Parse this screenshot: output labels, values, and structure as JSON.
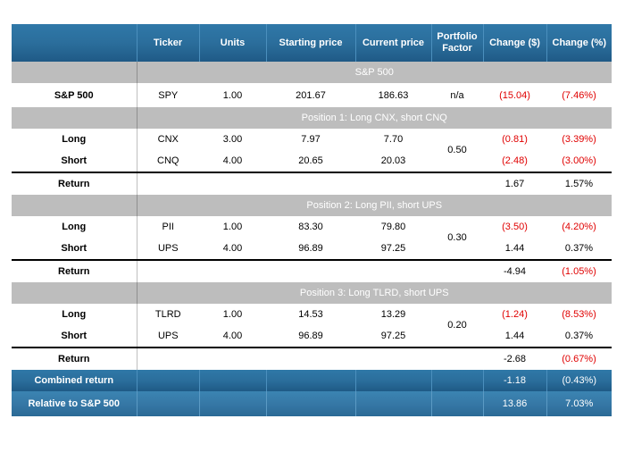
{
  "header": {
    "ticker": "Ticker",
    "units": "Units",
    "starting_price": "Starting price",
    "current_price": "Current price",
    "portfolio_factor_1": "Portfolio",
    "portfolio_factor_2": "Factor",
    "change_dollar": "Change ($)",
    "change_pct": "Change (%)"
  },
  "benchmark": {
    "section_title": "S&P 500",
    "label": "S&P 500",
    "ticker": "SPY",
    "units": "1.00",
    "starting_price": "201.67",
    "current_price": "186.63",
    "factor": "n/a",
    "change_dollar": "(15.04)",
    "change_pct": "(7.46%)"
  },
  "positions": [
    {
      "title": "Position 1: Long CNX, short CNQ",
      "factor": "0.50",
      "long": {
        "label": "Long",
        "ticker": "CNX",
        "units": "3.00",
        "start": "7.97",
        "current": "7.70",
        "chg": "(0.81)",
        "pct": "(3.39%)"
      },
      "short": {
        "label": "Short",
        "ticker": "CNQ",
        "units": "4.00",
        "start": "20.65",
        "current": "20.03",
        "chg": "(2.48)",
        "pct": "(3.00%)"
      },
      "ret": {
        "label": "Return",
        "chg": "1.67",
        "pct": "1.57%"
      }
    },
    {
      "title": "Position 2: Long PII, short UPS",
      "factor": "0.30",
      "long": {
        "label": "Long",
        "ticker": "PII",
        "units": "1.00",
        "start": "83.30",
        "current": "79.80",
        "chg": "(3.50)",
        "pct": "(4.20%)"
      },
      "short": {
        "label": "Short",
        "ticker": "UPS",
        "units": "4.00",
        "start": "96.89",
        "current": "97.25",
        "chg": "1.44",
        "pct": "0.37%"
      },
      "ret": {
        "label": "Return",
        "chg": "-4.94",
        "pct": "(1.05%)"
      }
    },
    {
      "title": "Position 3: Long TLRD, short UPS",
      "factor": "0.20",
      "long": {
        "label": "Long",
        "ticker": "TLRD",
        "units": "1.00",
        "start": "14.53",
        "current": "13.29",
        "chg": "(1.24)",
        "pct": "(8.53%)"
      },
      "short": {
        "label": "Short",
        "ticker": "UPS",
        "units": "4.00",
        "start": "96.89",
        "current": "97.25",
        "chg": "1.44",
        "pct": "0.37%"
      },
      "ret": {
        "label": "Return",
        "chg": "-2.68",
        "pct": "(0.67%)"
      }
    }
  ],
  "combined": {
    "label": "Combined return",
    "chg": "-1.18",
    "pct": "(0.43%)"
  },
  "relative": {
    "label": "Relative to S&P 500",
    "chg": "13.86",
    "pct": "7.03%"
  },
  "colors": {
    "header_blue": "#2b6e9c",
    "section_gray": "#bdbdbd",
    "negative_red": "#e00000"
  }
}
